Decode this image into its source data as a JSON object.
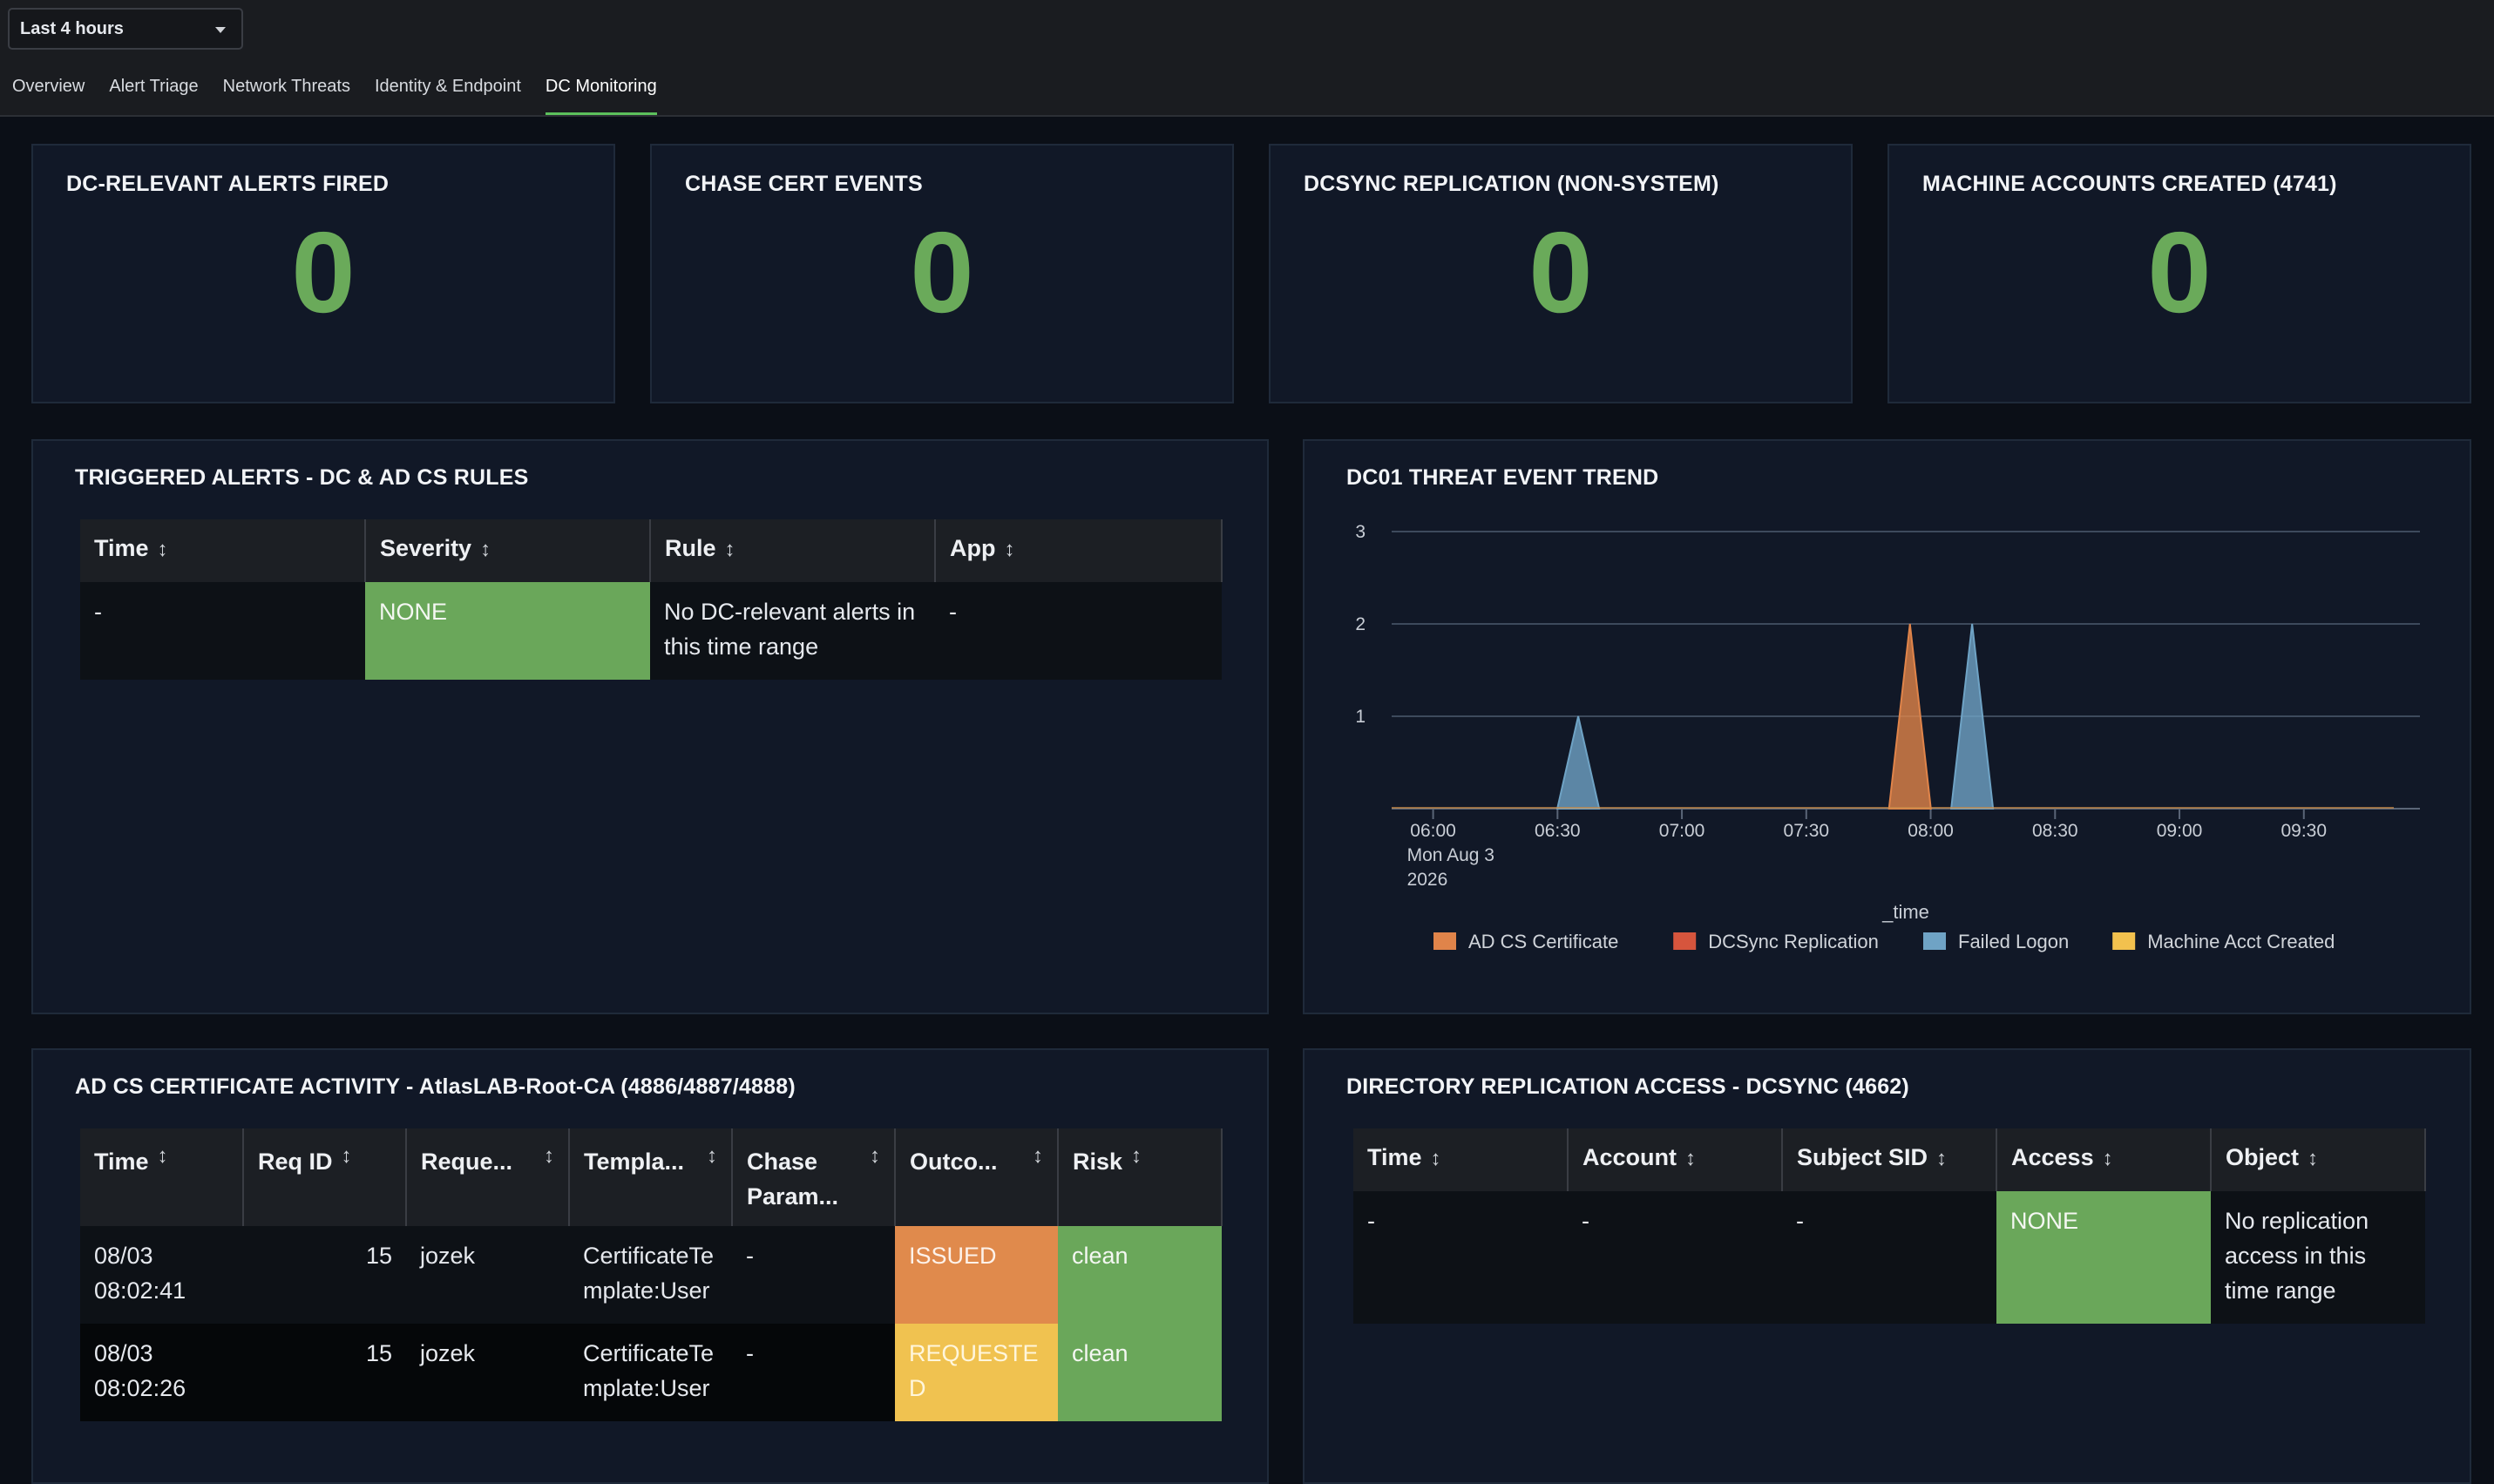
{
  "time_picker": {
    "label": "Last 4 hours"
  },
  "tabs": [
    {
      "label": "Overview"
    },
    {
      "label": "Alert Triage"
    },
    {
      "label": "Network Threats"
    },
    {
      "label": "Identity & Endpoint"
    },
    {
      "label": "DC Monitoring"
    }
  ],
  "active_tab": "DC Monitoring",
  "kpis": [
    {
      "title": "DC-RELEVANT ALERTS FIRED",
      "value": "0"
    },
    {
      "title": "CHASE CERT EVENTS",
      "value": "0"
    },
    {
      "title": "DCSYNC REPLICATION (NON-SYSTEM)",
      "value": "0"
    },
    {
      "title": "MACHINE ACCOUNTS CREATED (4741)",
      "value": "0"
    }
  ],
  "triggered_alerts": {
    "title": "TRIGGERED ALERTS - DC & AD CS RULES",
    "columns": [
      "Time",
      "Severity",
      "Rule",
      "App"
    ],
    "rows": [
      {
        "time": "-",
        "severity": "NONE",
        "rule": "No DC-relevant alerts in this time range",
        "app": "-"
      }
    ]
  },
  "trend": {
    "title": "DC01 THREAT EVENT TREND"
  },
  "chart_data": {
    "type": "area",
    "title": "DC01 THREAT EVENT TREND",
    "xlabel": "_time",
    "ylabel": "",
    "ylim": [
      0,
      3
    ],
    "y_ticks": [
      "1",
      "2",
      "3"
    ],
    "x_ticks": [
      "06:00",
      "06:30",
      "07:00",
      "07:30",
      "08:00",
      "08:30",
      "09:00",
      "09:30"
    ],
    "x_tick_sublabel": [
      "Mon Aug 3",
      "2026"
    ],
    "x_range": [
      "05:50",
      "09:58"
    ],
    "legend_position": "bottom",
    "grid": true,
    "series": [
      {
        "name": "AD CS Certificate",
        "color": "#e0844a",
        "points": [
          {
            "x": "07:55",
            "y": 0
          },
          {
            "x": "07:55",
            "y": 0
          },
          {
            "x": "08:00",
            "y": 0
          }
        ],
        "spikes": [
          {
            "x": "07:55",
            "y": 2
          }
        ]
      },
      {
        "name": "DCSync Replication",
        "color": "#d6553d",
        "spikes": []
      },
      {
        "name": "Failed Logon",
        "color": "#6fa3c5",
        "spikes": [
          {
            "x": "06:35",
            "y": 1
          },
          {
            "x": "08:10",
            "y": 2
          }
        ]
      },
      {
        "name": "Machine Acct Created",
        "color": "#f2c14e",
        "spikes": []
      }
    ]
  },
  "adcs": {
    "title": "AD CS CERTIFICATE ACTIVITY - AtlasLAB-Root-CA (4886/4887/4888)",
    "columns": [
      "Time",
      "Req ID",
      "Reque...",
      "Templa...",
      "Chase Param...",
      "Outco...",
      "Risk"
    ],
    "rows": [
      {
        "time": "08/03 08:02:41",
        "req_id": "15",
        "requester": "jozek",
        "template": "CertificateTemplate:User",
        "chase": "-",
        "outcome": "ISSUED",
        "risk": "clean"
      },
      {
        "time": "08/03 08:02:26",
        "req_id": "15",
        "requester": "jozek",
        "template": "CertificateTemplate:User",
        "chase": "-",
        "outcome": "REQUESTED",
        "risk": "clean"
      }
    ]
  },
  "replication": {
    "title": "DIRECTORY REPLICATION ACCESS - DCSYNC (4662)",
    "columns": [
      "Time",
      "Account",
      "Subject SID",
      "Access",
      "Object"
    ],
    "rows": [
      {
        "time": "-",
        "account": "-",
        "sid": "-",
        "access": "NONE",
        "object": "No replication access in this time range"
      }
    ]
  },
  "colors": {
    "accent_green": "#5cc05c",
    "value_green": "#6aaa5a",
    "severity_none": "#6aa75a",
    "issued": "#e08a4c",
    "requested": "#f0c250"
  }
}
